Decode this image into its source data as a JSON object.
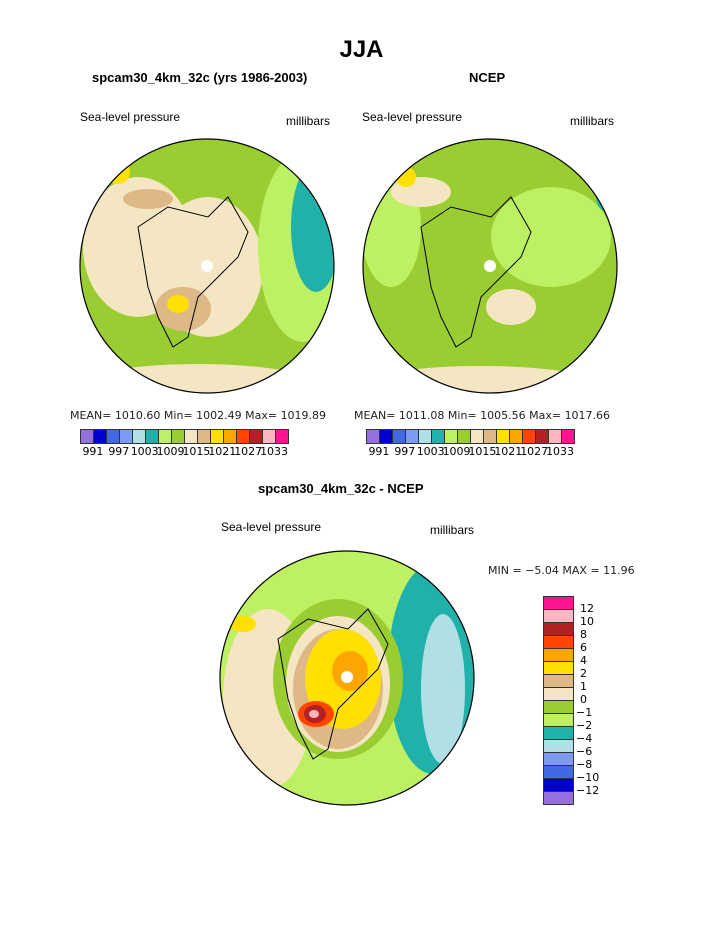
{
  "title": "JJA",
  "colors": [
    "#9370DB",
    "#0000CD",
    "#4169E1",
    "#7B9CF0",
    "#B0E0E6",
    "#20B2AA",
    "#BDF062",
    "#9ACD32",
    "#F5E6C3",
    "#DEB887",
    "#FFE000",
    "#FFA500",
    "#FF4500",
    "#B22222",
    "#FFB6C1",
    "#FF1493"
  ],
  "panels": [
    {
      "title": "spcam30_4km_32c (yrs 1986-2003)",
      "left_label": "Sea-level pressure",
      "right_label": "millibars",
      "stats": "MEAN= 1010.60   Min= 1002.49   Max= 1019.89",
      "cb_labels": [
        "991",
        "997",
        "1003",
        "1009",
        "1015",
        "1021",
        "1027",
        "1033"
      ]
    },
    {
      "title": "NCEP",
      "left_label": "Sea-level pressure",
      "right_label": "millibars",
      "stats": "MEAN= 1011.08   Min= 1005.56   Max= 1017.66",
      "cb_labels": [
        "991",
        "997",
        "1003",
        "1009",
        "1015",
        "1021",
        "1027",
        "1033"
      ]
    }
  ],
  "diff": {
    "title": "spcam30_4km_32c - NCEP",
    "left_label": "Sea-level pressure",
    "right_label": "millibars",
    "stats": "MIN =   −5.04  MAX =   11.96",
    "cb_labels": [
      "12",
      "10",
      "8",
      "6",
      "4",
      "2",
      "1",
      "0",
      "−1",
      "−2",
      "−4",
      "−6",
      "−8",
      "−10",
      "−12"
    ]
  }
}
